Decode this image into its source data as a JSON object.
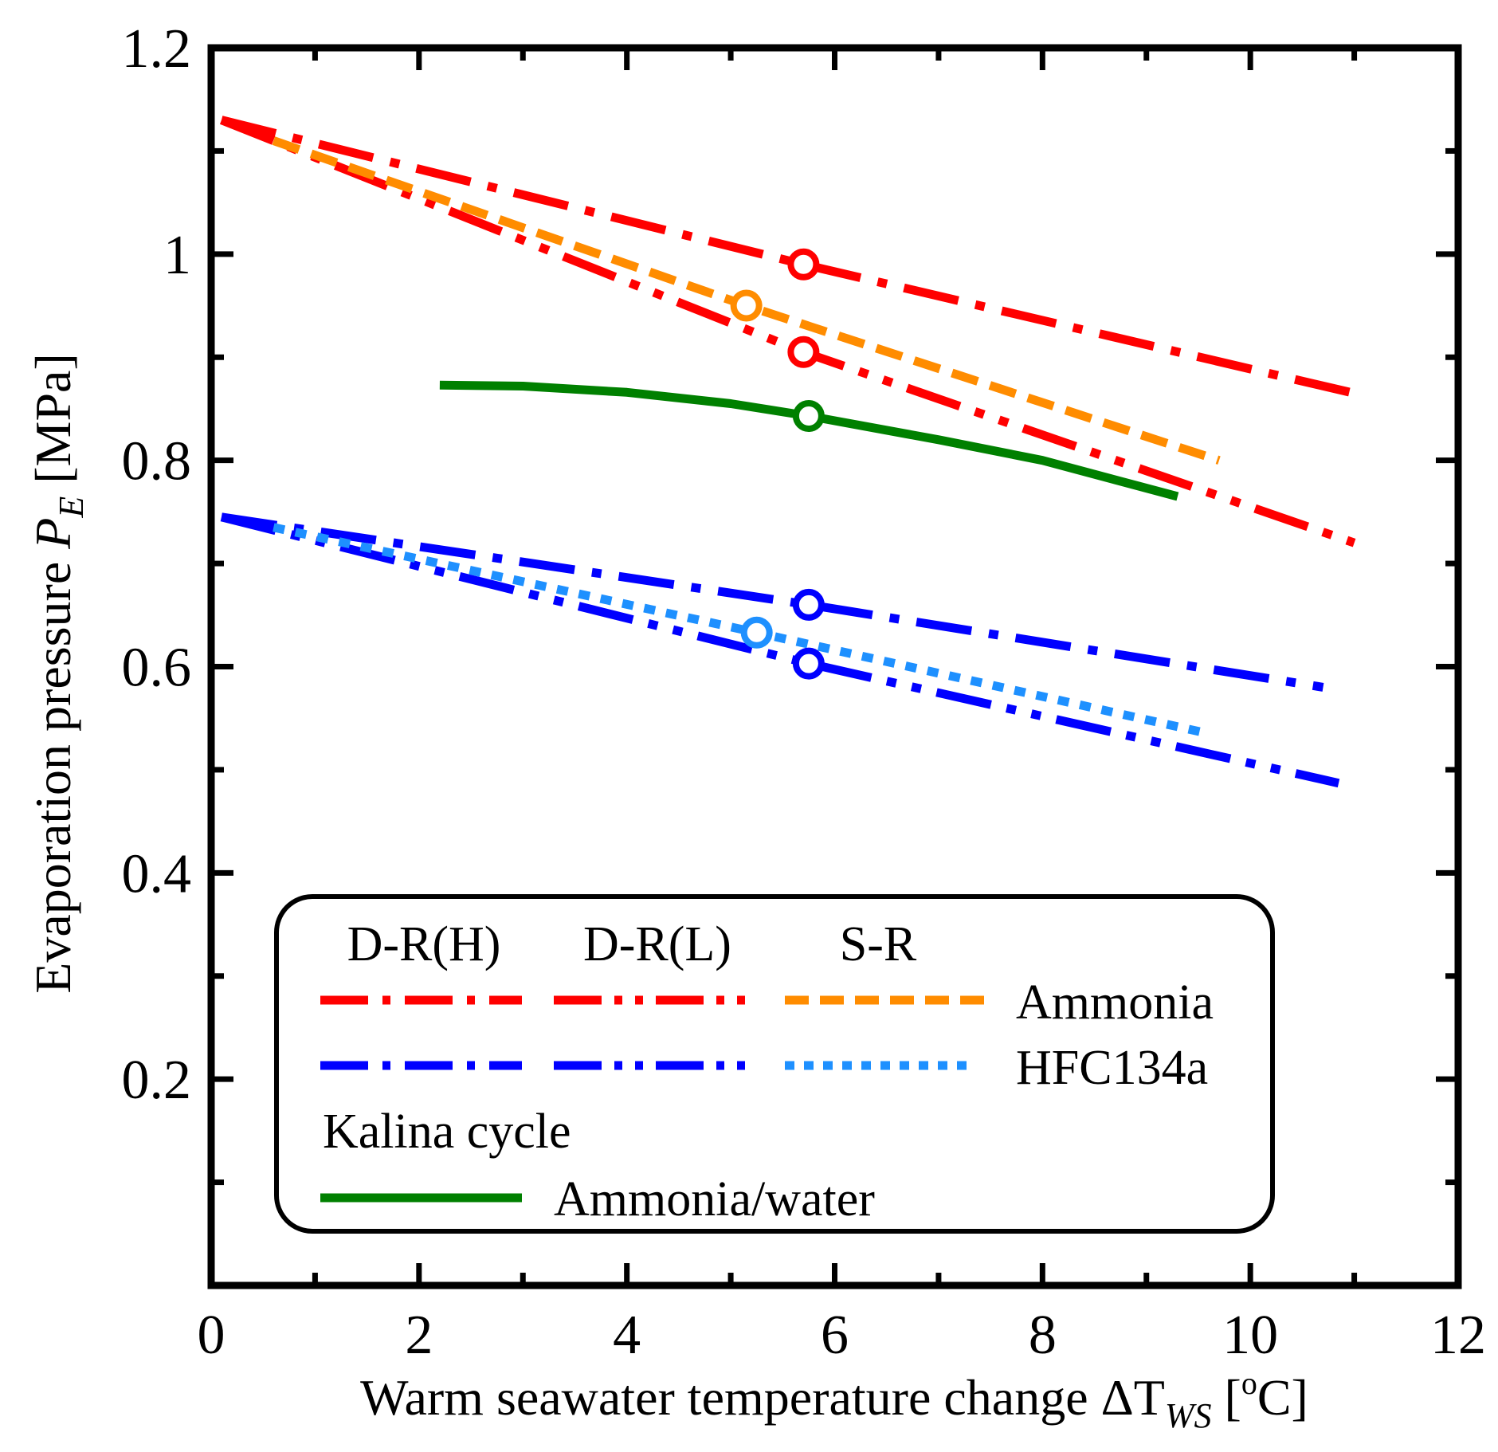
{
  "chart_data": {
    "type": "line",
    "xlabel": "Warm seawater temperature change",
    "xlabel_symbol": "ΔT",
    "xlabel_subscript": "WS",
    "xlabel_unit_open": " [",
    "xlabel_unit_sup": "o",
    "xlabel_unit_close": "C]",
    "ylabel": "Evaporation pressure",
    "ylabel_symbol": "P",
    "ylabel_subscript": "E",
    "ylabel_unit": " [MPa]",
    "xlim": [
      0,
      12
    ],
    "ylim": [
      0,
      1.2
    ],
    "x_ticks": [
      0,
      2,
      4,
      6,
      8,
      10,
      12
    ],
    "x_tick_labels": [
      "0",
      "2",
      "4",
      "6",
      "8",
      "10",
      "12"
    ],
    "y_ticks": [
      0.2,
      0.4,
      0.6,
      0.8,
      1.0,
      1.2
    ],
    "y_tick_labels": [
      "0.2",
      "0.4",
      "0.6",
      "0.8",
      "1",
      "1.2"
    ],
    "series": [
      {
        "name": "Ammonia D-R(H)",
        "color": "#ff0000",
        "style": "dash-dot",
        "x": [
          0.1,
          5.7,
          11.0
        ],
        "y": [
          1.13,
          0.99,
          0.865
        ],
        "marker": {
          "x": 5.7,
          "y": 0.99
        }
      },
      {
        "name": "Ammonia D-R(L)",
        "color": "#ff0000",
        "style": "dash-dot-dot",
        "x": [
          0.1,
          5.7,
          11.0
        ],
        "y": [
          1.13,
          0.905,
          0.72
        ],
        "marker": {
          "x": 5.7,
          "y": 0.905
        }
      },
      {
        "name": "Ammonia S-R",
        "color": "#ff8c00",
        "style": "dash",
        "x": [
          0.6,
          5.15,
          9.7
        ],
        "y": [
          1.11,
          0.95,
          0.8
        ],
        "marker": {
          "x": 5.15,
          "y": 0.95
        }
      },
      {
        "name": "HFC134a D-R(H)",
        "color": "#0000ff",
        "style": "dash-dot",
        "x": [
          0.1,
          5.75,
          10.7
        ],
        "y": [
          0.745,
          0.66,
          0.58
        ],
        "marker": {
          "x": 5.75,
          "y": 0.66
        }
      },
      {
        "name": "HFC134a D-R(L)",
        "color": "#0000ff",
        "style": "dash-dot-dot",
        "x": [
          0.1,
          5.75,
          10.85
        ],
        "y": [
          0.745,
          0.603,
          0.487
        ],
        "marker": {
          "x": 5.75,
          "y": 0.603
        }
      },
      {
        "name": "HFC134a S-R",
        "color": "#1e90ff",
        "style": "dot",
        "x": [
          0.6,
          5.25,
          9.6
        ],
        "y": [
          0.735,
          0.633,
          0.535
        ],
        "marker": {
          "x": 5.25,
          "y": 0.633
        }
      },
      {
        "name": "Ammonia/water Kalina cycle",
        "color": "#008000",
        "style": "solid",
        "x": [
          2.2,
          3.0,
          4.0,
          5.0,
          5.75,
          7.0,
          8.0,
          9.3
        ],
        "y": [
          0.873,
          0.872,
          0.866,
          0.855,
          0.843,
          0.82,
          0.8,
          0.765
        ],
        "marker": {
          "x": 5.75,
          "y": 0.843
        }
      }
    ],
    "legend": {
      "placement": "bottom-center",
      "headers": [
        "D-R(H)",
        "D-R(L)",
        "S-R"
      ],
      "rows": [
        "Ammonia",
        "HFC134a"
      ],
      "kalina_title": "Kalina cycle",
      "kalina_row": "Ammonia/water"
    }
  }
}
